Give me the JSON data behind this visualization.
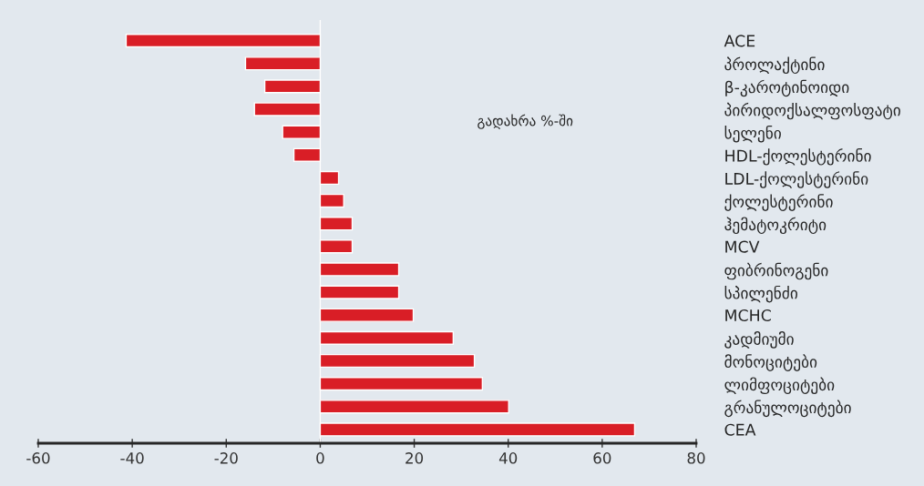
{
  "chart_data": {
    "type": "bar",
    "orientation": "horizontal",
    "categories": [
      "ACE",
      "პროლაქტინი",
      "β-კაროტინოიდი",
      "პირიდოქსალფოსფატი",
      "სელენი",
      "HDL-ქოლესტერინი",
      "LDL-ქოლესტერინი",
      "ქოლესტერინი",
      "ჰემატოკრიტი",
      "MCV",
      "ფიბრინოგენი",
      "სპილენძი",
      "MCHC",
      "კადმიუმი",
      "მონოციტები",
      "ლიმფოციტები",
      "გრანულოციტები",
      "CEA"
    ],
    "values": [
      -41.3,
      -15.9,
      -11.8,
      -14.0,
      -8.0,
      -5.6,
      3.9,
      5.0,
      6.8,
      6.8,
      16.7,
      16.7,
      19.8,
      28.3,
      32.8,
      34.5,
      40.1,
      66.9
    ],
    "color": "#d91e26",
    "xlim": [
      -60,
      80
    ],
    "xticks": [
      -60,
      -40,
      -20,
      0,
      20,
      40,
      60,
      80
    ],
    "annotations": [
      "გადახრა %-ში"
    ],
    "ref_lines": [
      {
        "axis": "x",
        "value": 0,
        "color": "#ffffff"
      }
    ],
    "legend": false
  }
}
